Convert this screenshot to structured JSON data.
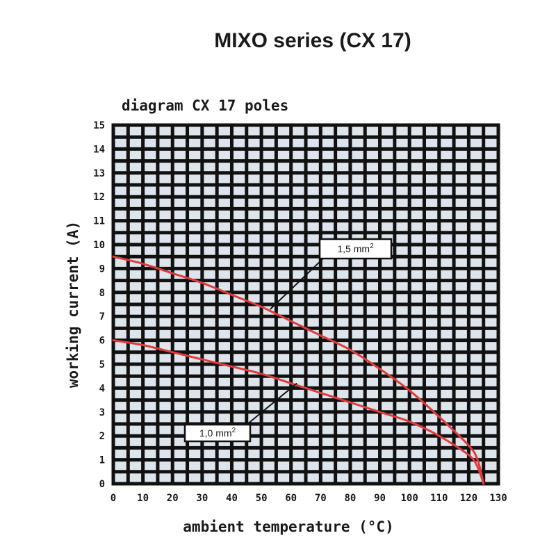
{
  "chart_data": {
    "type": "line",
    "title": "MIXO series (CX 17)",
    "subtitle": "diagram CX 17 poles",
    "xlabel": "ambient temperature (°C)",
    "ylabel": "working current (A)",
    "xlim": [
      0,
      130
    ],
    "ylim": [
      0,
      15
    ],
    "x_ticks": [
      "0",
      "10",
      "20",
      "30",
      "40",
      "50",
      "60",
      "70",
      "80",
      "90",
      "100",
      "110",
      "120",
      "130"
    ],
    "y_ticks": [
      "0",
      "1",
      "2",
      "3",
      "4",
      "5",
      "6",
      "7",
      "8",
      "9",
      "10",
      "11",
      "12",
      "13",
      "14",
      "15"
    ],
    "grid": true,
    "colors": {
      "series": "#e23a3a",
      "grid": "#111111",
      "cell": "#dde4ec"
    },
    "series": [
      {
        "name": "1,5 mm²",
        "x": [
          0,
          10,
          20,
          30,
          40,
          50,
          60,
          70,
          80,
          90,
          100,
          110,
          120,
          123,
          125
        ],
        "y": [
          9.5,
          9.2,
          8.8,
          8.4,
          7.9,
          7.4,
          6.8,
          6.2,
          5.6,
          4.8,
          3.9,
          2.8,
          1.6,
          1.0,
          0
        ]
      },
      {
        "name": "1,0 mm²",
        "x": [
          0,
          10,
          20,
          30,
          40,
          50,
          60,
          70,
          80,
          90,
          100,
          110,
          120,
          123,
          125
        ],
        "y": [
          6.0,
          5.8,
          5.5,
          5.2,
          4.9,
          4.6,
          4.2,
          3.8,
          3.4,
          3.0,
          2.6,
          2.0,
          1.2,
          0.7,
          0
        ]
      }
    ],
    "annotations": [
      {
        "series": "1,5 mm²",
        "label": "1,5 mm",
        "sup": "2",
        "anchor_x": 53,
        "anchor_y": 7.3
      },
      {
        "series": "1,0 mm²",
        "label": "1,0 mm",
        "sup": "2",
        "anchor_x": 62,
        "anchor_y": 4.2
      }
    ]
  }
}
